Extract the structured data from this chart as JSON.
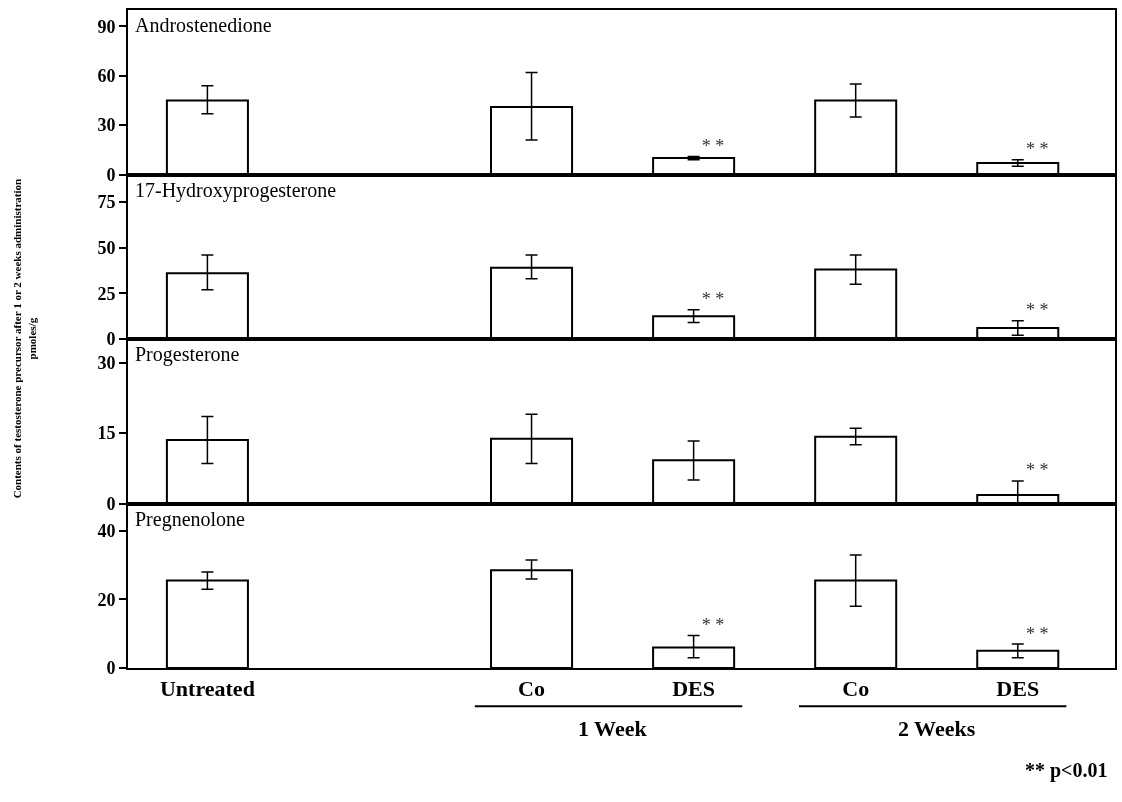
{
  "chart_data": [
    {
      "type": "bar",
      "title": "Androstenedione",
      "ylabel": "Contents of testosterone precursor after 1 or 2 weeks administration\npmoles/g",
      "categories": [
        null,
        null,
        null,
        null,
        null,
        null
      ],
      "values": [
        45,
        null,
        41,
        10,
        45,
        7
      ],
      "errors": [
        [
          37,
          54
        ],
        null,
        [
          21,
          62
        ],
        [
          9,
          11
        ],
        [
          35,
          55
        ],
        [
          5,
          9
        ]
      ],
      "value_labels": [
        null,
        null,
        null,
        "* *",
        null,
        "* *"
      ],
      "color": "#ffffff",
      "ylim": [
        0,
        100
      ],
      "yticks": [
        0,
        30,
        60,
        90
      ],
      "tick_labels": "y",
      "grid": false,
      "legend": false
    },
    {
      "type": "bar",
      "title": "17-Hydroxyprogesterone",
      "categories": [
        null,
        null,
        null,
        null,
        null,
        null
      ],
      "values": [
        36,
        null,
        39,
        12.5,
        38,
        6
      ],
      "errors": [
        [
          27,
          46
        ],
        null,
        [
          33,
          46
        ],
        [
          9,
          16
        ],
        [
          30,
          46
        ],
        [
          2,
          10
        ]
      ],
      "value_labels": [
        null,
        null,
        null,
        "* *",
        null,
        "* *"
      ],
      "color": "#ffffff",
      "ylim": [
        0,
        90
      ],
      "yticks": [
        0,
        25,
        50,
        75
      ],
      "tick_labels": "y",
      "grid": false,
      "legend": false
    },
    {
      "type": "bar",
      "title": "Progesterone",
      "categories": [
        null,
        null,
        null,
        null,
        null,
        null
      ],
      "values": [
        13.5,
        null,
        13.8,
        9.2,
        14.2,
        1.8
      ],
      "errors": [
        [
          8.5,
          18.5
        ],
        null,
        [
          8.5,
          19
        ],
        [
          5,
          13.3
        ],
        [
          12.5,
          16
        ],
        [
          0,
          4.8
        ]
      ],
      "value_labels": [
        null,
        null,
        null,
        null,
        null,
        "* *"
      ],
      "color": "#ffffff",
      "ylim": [
        0,
        35
      ],
      "yticks": [
        0,
        15,
        30
      ],
      "tick_labels": "y",
      "grid": false,
      "legend": false
    },
    {
      "type": "bar",
      "title": "Pregnenolone",
      "categories": [
        "Untreated",
        null,
        "Co",
        "DES",
        "Co",
        "DES"
      ],
      "values": [
        25.5,
        null,
        28.5,
        6,
        25.5,
        5
      ],
      "errors": [
        [
          23,
          28
        ],
        null,
        [
          26,
          31.5
        ],
        [
          3,
          9.5
        ],
        [
          18,
          33
        ],
        [
          3,
          7
        ]
      ],
      "value_labels": [
        null,
        null,
        null,
        "* *",
        null,
        "* *"
      ],
      "color": "#ffffff",
      "ylim": [
        0,
        48
      ],
      "yticks": [
        0,
        20,
        40
      ],
      "grid": false,
      "legend": false,
      "annotations": [
        "1 Week",
        "2 Weeks",
        "** p<0.01"
      ]
    }
  ]
}
